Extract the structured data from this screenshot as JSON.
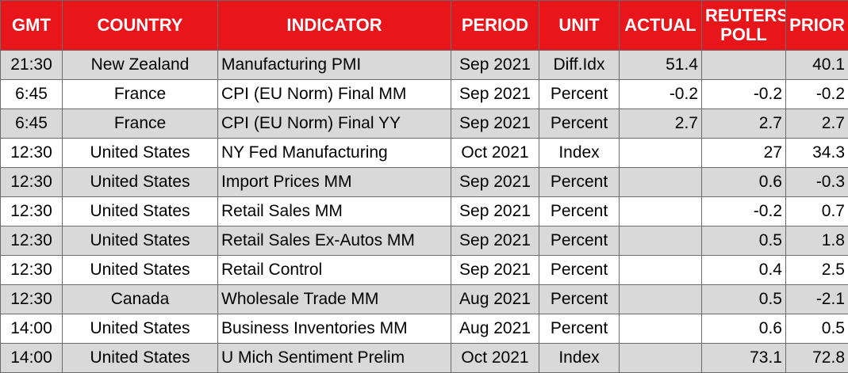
{
  "headers": {
    "gmt": "GMT",
    "country": "COUNTRY",
    "indicator": "INDICATOR",
    "period": "PERIOD",
    "unit": "UNIT",
    "actual": "ACTUAL",
    "poll_line1": "REUTERS",
    "poll_line2": "POLL",
    "prior": "PRIOR"
  },
  "colors": {
    "header_bg": "#e8151b",
    "header_text": "#ffffff",
    "row_shade": "#d9d9d9",
    "row_plain": "#ffffff"
  },
  "rows": [
    {
      "gmt": "21:30",
      "country": "New Zealand",
      "indicator": "Manufacturing PMI",
      "period": "Sep 2021",
      "unit": "Diff.Idx",
      "actual": "51.4",
      "poll": "",
      "prior": "40.1"
    },
    {
      "gmt": "6:45",
      "country": "France",
      "indicator": "CPI (EU Norm) Final MM",
      "period": "Sep 2021",
      "unit": "Percent",
      "actual": "-0.2",
      "poll": "-0.2",
      "prior": "-0.2"
    },
    {
      "gmt": "6:45",
      "country": "France",
      "indicator": "CPI (EU Norm) Final YY",
      "period": "Sep 2021",
      "unit": "Percent",
      "actual": "2.7",
      "poll": "2.7",
      "prior": "2.7"
    },
    {
      "gmt": "12:30",
      "country": "United States",
      "indicator": "NY Fed Manufacturing",
      "period": "Oct 2021",
      "unit": "Index",
      "actual": "",
      "poll": "27",
      "prior": "34.3"
    },
    {
      "gmt": "12:30",
      "country": "United States",
      "indicator": "Import Prices MM",
      "period": "Sep 2021",
      "unit": "Percent",
      "actual": "",
      "poll": "0.6",
      "prior": "-0.3"
    },
    {
      "gmt": "12:30",
      "country": "United States",
      "indicator": "Retail Sales MM",
      "period": "Sep 2021",
      "unit": "Percent",
      "actual": "",
      "poll": "-0.2",
      "prior": "0.7"
    },
    {
      "gmt": "12:30",
      "country": "United States",
      "indicator": "Retail Sales Ex-Autos MM",
      "period": "Sep 2021",
      "unit": "Percent",
      "actual": "",
      "poll": "0.5",
      "prior": "1.8"
    },
    {
      "gmt": "12:30",
      "country": "United States",
      "indicator": "Retail Control",
      "period": "Sep 2021",
      "unit": "Percent",
      "actual": "",
      "poll": "0.4",
      "prior": "2.5"
    },
    {
      "gmt": "12:30",
      "country": "Canada",
      "indicator": "Wholesale Trade MM",
      "period": "Aug 2021",
      "unit": "Percent",
      "actual": "",
      "poll": "0.5",
      "prior": "-2.1"
    },
    {
      "gmt": "14:00",
      "country": "United States",
      "indicator": "Business Inventories MM",
      "period": "Aug 2021",
      "unit": "Percent",
      "actual": "",
      "poll": "0.6",
      "prior": "0.5"
    },
    {
      "gmt": "14:00",
      "country": "United States",
      "indicator": "U Mich Sentiment Prelim",
      "period": "Oct 2021",
      "unit": "Index",
      "actual": "",
      "poll": "73.1",
      "prior": "72.8"
    }
  ]
}
